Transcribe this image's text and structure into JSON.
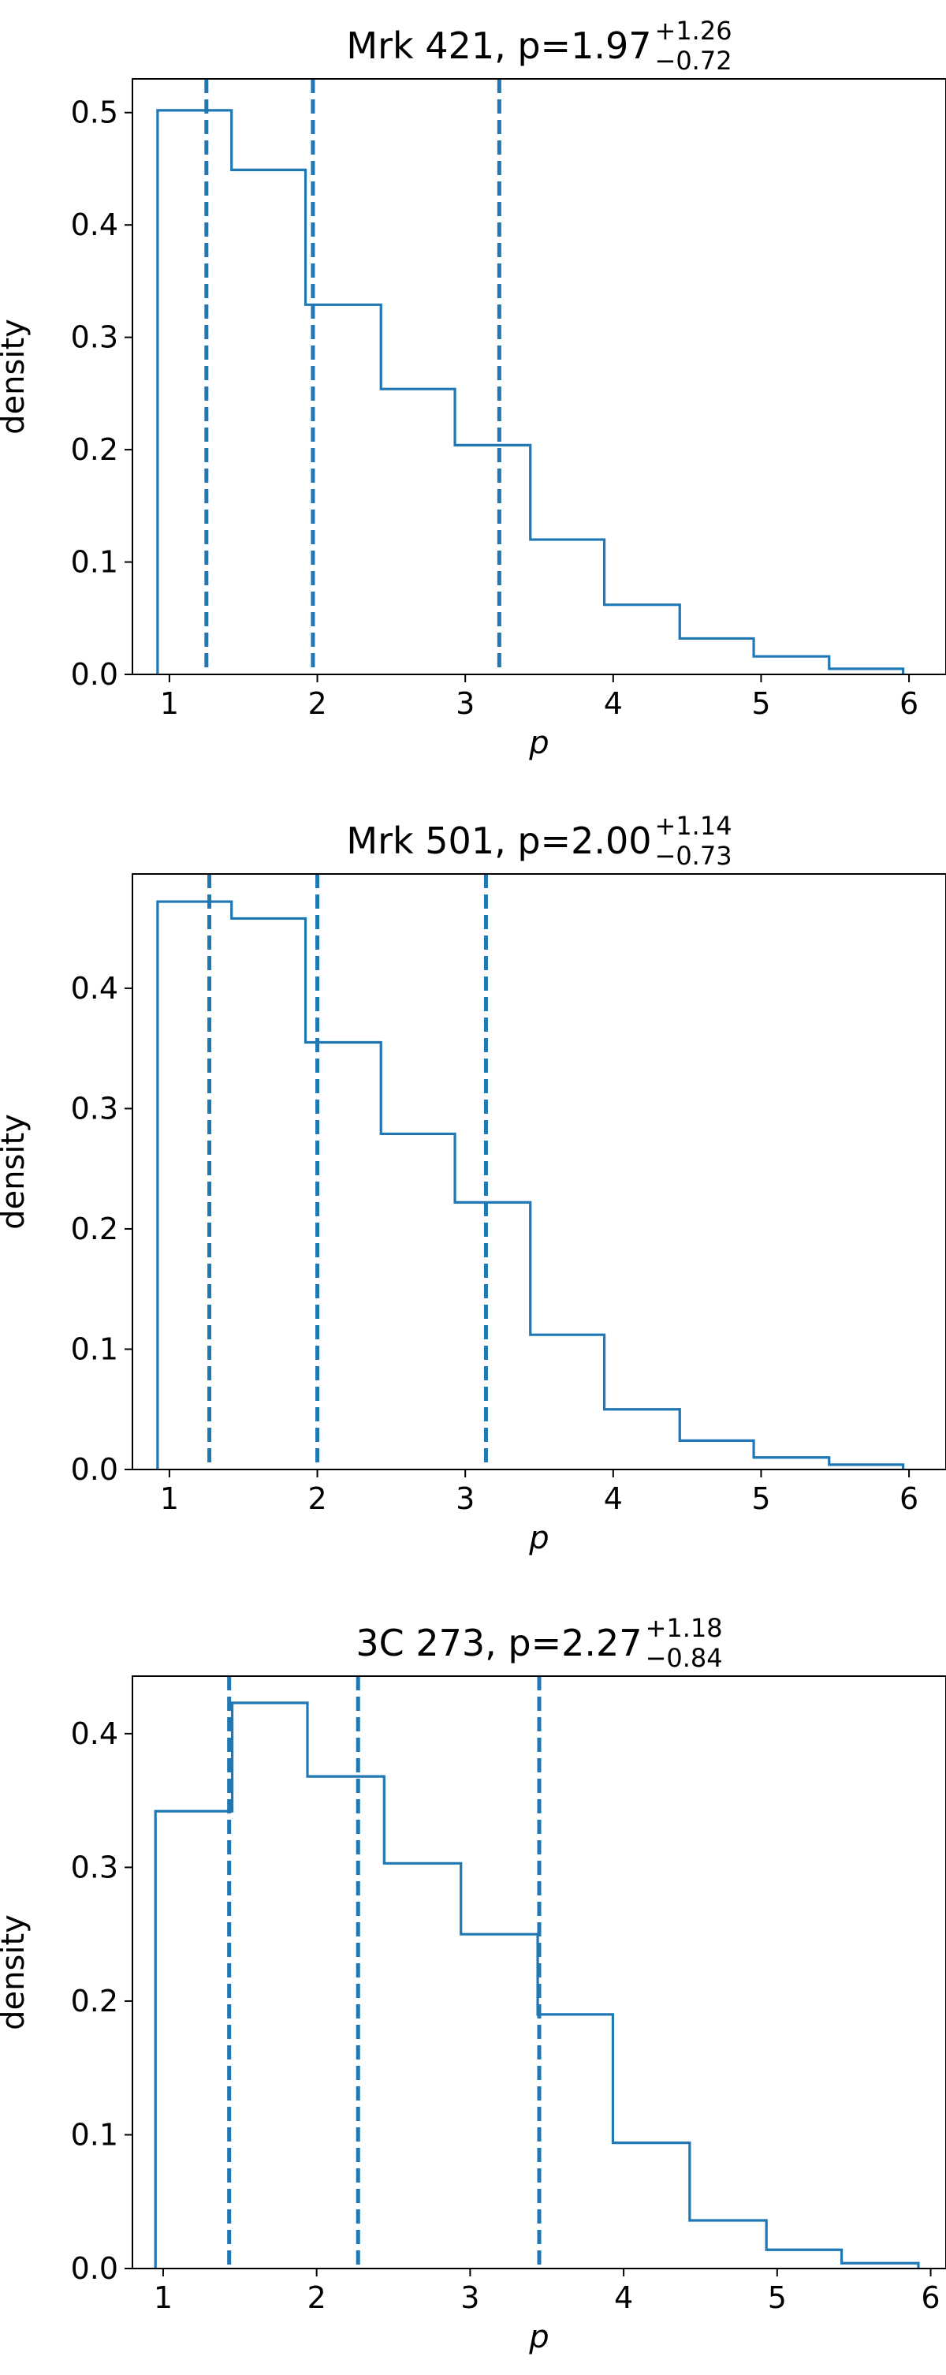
{
  "chart_data": [
    {
      "type": "histogram",
      "title": {
        "base": "Mrk 421, p=1.97",
        "sup": "+1.26",
        "sub": "−0.72"
      },
      "xlabel": "p",
      "ylabel": "density",
      "xlim": [
        0.75,
        6.25
      ],
      "ylim": [
        0.0,
        0.53
      ],
      "xticks": [
        1,
        2,
        3,
        4,
        5,
        6
      ],
      "yticks": [
        0.0,
        0.1,
        0.2,
        0.3,
        0.4,
        0.5
      ],
      "bin_edges": [
        0.92,
        1.42,
        1.92,
        2.43,
        2.93,
        3.44,
        3.94,
        4.45,
        4.95,
        5.46,
        5.96
      ],
      "values": [
        0.502,
        0.449,
        0.329,
        0.254,
        0.204,
        0.12,
        0.062,
        0.032,
        0.016,
        0.005
      ],
      "vlines": [
        1.25,
        1.97,
        3.23
      ],
      "color": "#1f77b4"
    },
    {
      "type": "histogram",
      "title": {
        "base": "Mrk 501, p=2.00",
        "sup": "+1.14",
        "sub": "−0.73"
      },
      "xlabel": "p",
      "ylabel": "density",
      "xlim": [
        0.75,
        6.25
      ],
      "ylim": [
        0.0,
        0.495
      ],
      "xticks": [
        1,
        2,
        3,
        4,
        5,
        6
      ],
      "yticks": [
        0.0,
        0.1,
        0.2,
        0.3,
        0.4
      ],
      "bin_edges": [
        0.92,
        1.42,
        1.92,
        2.43,
        2.93,
        3.44,
        3.94,
        4.45,
        4.95,
        5.46,
        5.96
      ],
      "values": [
        0.472,
        0.458,
        0.355,
        0.279,
        0.222,
        0.112,
        0.05,
        0.024,
        0.01,
        0.004
      ],
      "vlines": [
        1.27,
        2.0,
        3.14
      ],
      "color": "#1f77b4"
    },
    {
      "type": "histogram",
      "title": {
        "base": "3C 273, p=2.27",
        "sup": "+1.18",
        "sub": "−0.84"
      },
      "xlabel": "p",
      "ylabel": "density",
      "xlim": [
        0.8,
        6.1
      ],
      "ylim": [
        0.0,
        0.443
      ],
      "xticks": [
        1,
        2,
        3,
        4,
        5,
        6
      ],
      "yticks": [
        0.0,
        0.1,
        0.2,
        0.3,
        0.4
      ],
      "bin_edges": [
        0.95,
        1.45,
        1.94,
        2.44,
        2.94,
        3.44,
        3.93,
        4.43,
        4.93,
        5.42,
        5.92
      ],
      "values": [
        0.342,
        0.423,
        0.368,
        0.303,
        0.25,
        0.19,
        0.094,
        0.036,
        0.014,
        0.004
      ],
      "vlines": [
        1.43,
        2.27,
        3.45
      ],
      "color": "#1f77b4"
    }
  ]
}
